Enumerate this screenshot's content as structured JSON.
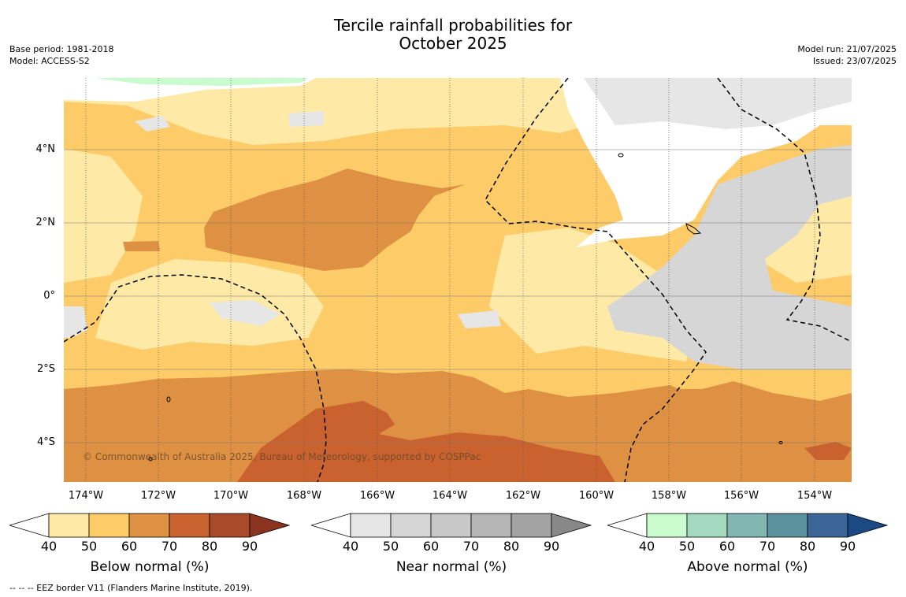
{
  "title_line1": "Tercile rainfall probabilities for",
  "title_line2": "October 2025",
  "base_period": "Base period: 1981-2018",
  "model": "Model: ACCESS-S2",
  "model_run": "Model run: 21/07/2025",
  "issued": "Issued: 23/07/2025",
  "copyright": "© Commonwealth of Australia 2025, Bureau of Meteorology, supported by COSPPac",
  "footnote": "--  --  -- EEZ border V11 (Flanders Marine Institute, 2019).",
  "lat_labels": [
    "4°N",
    "2°N",
    "0°",
    "2°S",
    "4°S"
  ],
  "lon_labels": [
    "174°W",
    "172°W",
    "170°W",
    "168°W",
    "166°W",
    "164°W",
    "162°W",
    "160°W",
    "158°W",
    "156°W",
    "154°W"
  ],
  "colorbars": [
    {
      "title": "Below normal (%)",
      "ticks": [
        "40",
        "50",
        "60",
        "70",
        "80",
        "90"
      ],
      "colors": [
        "#ffffff",
        "#ffe9a6",
        "#fdcb68",
        "#de9142",
        "#c9622f",
        "#a94a2a",
        "#8a3320"
      ]
    },
    {
      "title": "Near normal (%)",
      "ticks": [
        "40",
        "50",
        "60",
        "70",
        "80",
        "90"
      ],
      "colors": [
        "#ffffff",
        "#e6e6e6",
        "#d6d6d6",
        "#c8c8c8",
        "#b6b6b6",
        "#a3a3a3",
        "#888888"
      ]
    },
    {
      "title": "Above normal (%)",
      "ticks": [
        "40",
        "50",
        "60",
        "70",
        "80",
        "90"
      ],
      "colors": [
        "#ffffff",
        "#c9fbcf",
        "#a3d9be",
        "#82b6b2",
        "#5c929e",
        "#3b6697",
        "#1b4a82"
      ]
    }
  ]
}
